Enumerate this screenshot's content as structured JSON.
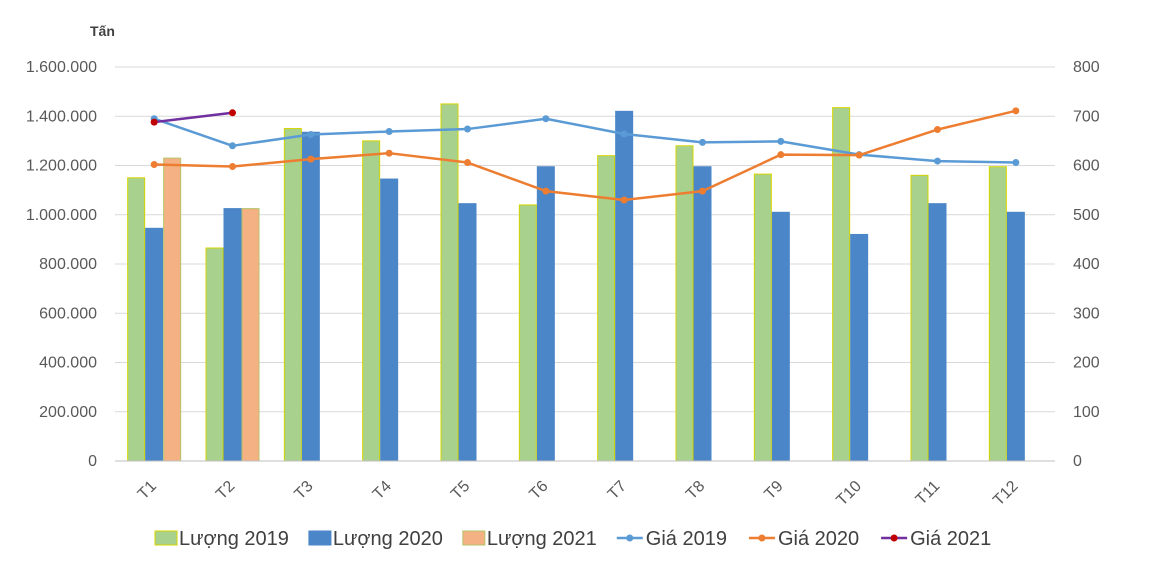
{
  "chart_data": {
    "type": "bar",
    "title": "",
    "y_unit_label": "Tấn",
    "categories": [
      "T1",
      "T2",
      "T3",
      "T4",
      "T5",
      "T6",
      "T7",
      "T8",
      "T9",
      "T10",
      "T11",
      "T12"
    ],
    "y_left": {
      "min": 0,
      "max": 1600000,
      "step": 200000,
      "tick_labels": [
        "0",
        "200.000",
        "400.000",
        "600.000",
        "800.000",
        "1.000.000",
        "1.200.000",
        "1.400.000",
        "1.600.000"
      ]
    },
    "y_right": {
      "min": 0,
      "max": 800,
      "step": 100,
      "tick_labels": [
        "0",
        "100",
        "200",
        "300",
        "400",
        "500",
        "600",
        "700",
        "800"
      ]
    },
    "grid": true,
    "legend_position": "bottom",
    "bar_series": [
      {
        "name": "Lượng 2019",
        "fill": "#a9d18e",
        "stroke": "#d4d400",
        "values": [
          1150000,
          865000,
          1350000,
          1300000,
          1450000,
          1040000,
          1240000,
          1280000,
          1165000,
          1435000,
          1160000,
          1195000
        ]
      },
      {
        "name": "Lượng 2020",
        "fill": "#4a86c8",
        "stroke": "#4a86c8",
        "values": [
          945000,
          1025000,
          1335000,
          1145000,
          1045000,
          1195000,
          1420000,
          1195000,
          1010000,
          920000,
          1045000,
          1010000
        ]
      },
      {
        "name": "Lượng 2021",
        "fill": "#f4b183",
        "stroke": "#b4c46a",
        "values": [
          1230000,
          1025000,
          null,
          null,
          null,
          null,
          null,
          null,
          null,
          null,
          null,
          null
        ]
      }
    ],
    "line_series": [
      {
        "name": "Giá 2019",
        "color": "#5b9bd5",
        "values": [
          695,
          640,
          663,
          669,
          674,
          695,
          664,
          647,
          649,
          622,
          609,
          606
        ]
      },
      {
        "name": "Giá 2020",
        "color": "#ed7d31",
        "values": [
          602,
          598,
          613,
          625,
          606,
          548,
          530,
          548,
          622,
          621,
          673,
          711
        ]
      },
      {
        "name": "Giá 2021",
        "color": "#7030a0",
        "marker_color": "#c00000",
        "values": [
          688,
          707,
          null,
          null,
          null,
          null,
          null,
          null,
          null,
          null,
          null,
          null
        ]
      }
    ]
  }
}
